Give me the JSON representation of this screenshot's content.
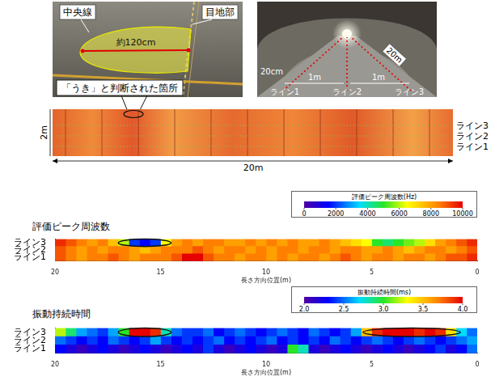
{
  "photo_left": {
    "center_line": "中央線",
    "joint": "目地部",
    "size": "約120cm",
    "callout": "「うき」と判断された箇所"
  },
  "photo_right": {
    "length": "20m",
    "offset": "20cm",
    "spacing": [
      "1m",
      "1m"
    ],
    "lines": [
      "ライン1",
      "ライン2",
      "ライン3"
    ]
  },
  "strip": {
    "height": "2m",
    "length": "20m",
    "lines": [
      "ライン3",
      "ライン2",
      "ライン1"
    ]
  },
  "chart_data": [
    {
      "type": "heatmap",
      "title": "評価ピーク周波数",
      "x_label": "長さ方向位置(m)",
      "xlim": [
        20,
        0
      ],
      "xticks": [
        20,
        15,
        10,
        5,
        0
      ],
      "rows": [
        "ライン3",
        "ライン2",
        "ライン1"
      ],
      "x": [
        19.75,
        19.25,
        18.75,
        18.25,
        17.75,
        17.25,
        16.75,
        16.25,
        15.75,
        15.25,
        14.75,
        14.25,
        13.75,
        13.25,
        12.75,
        12.25,
        11.75,
        11.25,
        10.75,
        10.25,
        9.75,
        9.25,
        8.75,
        8.25,
        7.75,
        7.25,
        6.75,
        6.25,
        5.75,
        5.25,
        4.75,
        4.25,
        3.75,
        3.25,
        2.75,
        2.25,
        1.75,
        1.25,
        0.75,
        0.25
      ],
      "cells": [
        [
          9500,
          9000,
          8500,
          8000,
          8500,
          7500,
          6000,
          2000,
          1500,
          2000,
          6500,
          8000,
          8500,
          8000,
          8500,
          8500,
          8000,
          8000,
          8500,
          8000,
          8500,
          8000,
          8500,
          8000,
          8000,
          8500,
          8000,
          7500,
          7000,
          6500,
          5000,
          4500,
          5000,
          5500,
          6000,
          7000,
          8000,
          8500,
          9000,
          9500
        ],
        [
          9000,
          8500,
          8000,
          8500,
          8000,
          8500,
          8500,
          8000,
          7500,
          8000,
          8500,
          8500,
          8500,
          9000,
          8500,
          8000,
          8500,
          8500,
          8000,
          8500,
          8000,
          8500,
          8500,
          8000,
          8500,
          8500,
          8000,
          8500,
          8500,
          8000,
          8000,
          8500,
          8000,
          7500,
          8000,
          8500,
          8500,
          8000,
          8500,
          9000
        ],
        [
          9000,
          8500,
          8000,
          8500,
          8500,
          9000,
          8500,
          8000,
          8500,
          8500,
          8500,
          9000,
          10000,
          10000,
          9000,
          8500,
          8500,
          8000,
          8500,
          8500,
          8000,
          8500,
          8000,
          8500,
          8500,
          8000,
          8500,
          9000,
          8500,
          8000,
          8500,
          8500,
          8000,
          8500,
          8500,
          8000,
          8500,
          9000,
          9000,
          9500
        ]
      ],
      "colorbar": {
        "title": "評価ピーク周波数(Hz)",
        "range": [
          0,
          10000
        ],
        "ticks": [
          0,
          2000,
          4000,
          6000,
          8000,
          10000
        ]
      },
      "highlights": [
        {
          "row": "ライン3",
          "x": [
            14.5,
            17
          ]
        }
      ]
    },
    {
      "type": "heatmap",
      "title": "振動持続時間",
      "x_label": "長さ方向位置(m)",
      "xlim": [
        20,
        0
      ],
      "xticks": [
        20,
        15,
        10,
        5,
        0
      ],
      "rows": [
        "ライン3",
        "ライン2",
        "ライン1"
      ],
      "x": [
        19.75,
        19.25,
        18.75,
        18.25,
        17.75,
        17.25,
        16.75,
        16.25,
        15.75,
        15.25,
        14.75,
        14.25,
        13.75,
        13.25,
        12.75,
        12.25,
        11.75,
        11.25,
        10.75,
        10.25,
        9.75,
        9.25,
        8.75,
        8.25,
        7.75,
        7.25,
        6.75,
        6.25,
        5.75,
        5.25,
        4.75,
        4.25,
        3.75,
        3.25,
        2.75,
        2.25,
        1.75,
        1.25,
        0.75,
        0.25
      ],
      "cells": [
        [
          3.2,
          2.9,
          2.6,
          2.5,
          2.4,
          2.6,
          3.0,
          4.0,
          4.0,
          3.9,
          2.8,
          2.5,
          2.4,
          2.4,
          2.5,
          2.3,
          2.4,
          2.5,
          2.4,
          2.3,
          2.4,
          2.5,
          2.4,
          2.3,
          2.5,
          2.4,
          2.3,
          2.4,
          2.6,
          3.5,
          3.9,
          4.0,
          4.0,
          4.0,
          3.9,
          4.0,
          3.9,
          3.4,
          2.7,
          2.5
        ],
        [
          2.5,
          2.4,
          2.3,
          2.4,
          2.3,
          2.5,
          2.4,
          2.3,
          2.4,
          2.6,
          2.4,
          2.3,
          2.4,
          2.3,
          2.4,
          2.5,
          2.3,
          2.4,
          2.3,
          2.4,
          2.5,
          2.3,
          2.4,
          2.3,
          2.4,
          2.3,
          2.5,
          2.4,
          2.3,
          2.4,
          2.5,
          2.4,
          2.3,
          2.4,
          2.5,
          2.4,
          2.3,
          2.4,
          2.5,
          2.6
        ],
        [
          2.3,
          2.2,
          2.1,
          2.2,
          2.3,
          2.2,
          2.1,
          2.2,
          2.3,
          2.2,
          2.1,
          2.2,
          2.3,
          2.2,
          2.4,
          2.2,
          2.1,
          2.2,
          2.3,
          2.2,
          2.1,
          2.2,
          3.0,
          2.8,
          2.2,
          2.1,
          2.2,
          2.3,
          2.2,
          2.1,
          2.2,
          2.3,
          2.2,
          2.1,
          2.2,
          2.3,
          2.4,
          2.2,
          2.3,
          2.5
        ]
      ],
      "colorbar": {
        "title": "振動持続時間(ms)",
        "range": [
          2,
          4
        ],
        "ticks": [
          {
            "value": 2,
            "label": "2.0"
          },
          {
            "value": 2.5,
            "label": "2.5"
          },
          {
            "value": 3,
            "label": "3.0"
          },
          {
            "value": 3.5,
            "label": "3.5"
          },
          {
            "value": 4,
            "label": "4.0"
          }
        ]
      },
      "highlights": [
        {
          "row": "ライン3",
          "x": [
            14.5,
            17
          ]
        },
        {
          "row": "ライン3",
          "x": [
            0.8,
            5.4
          ]
        }
      ]
    }
  ]
}
